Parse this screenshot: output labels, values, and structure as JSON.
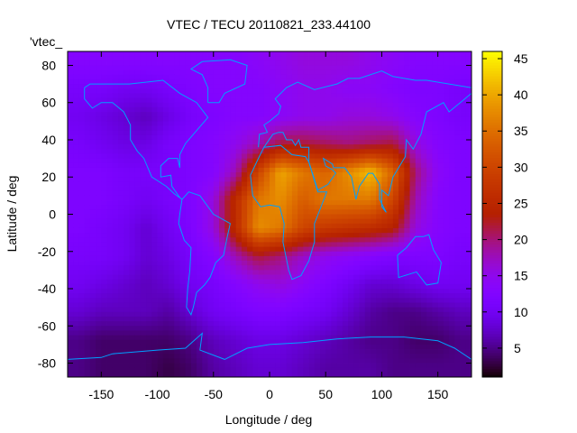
{
  "chart_data": {
    "type": "heatmap",
    "title": "VTEC / TECU 20110821_233.44100",
    "xlabel": "Longitude / deg",
    "ylabel": "Latitude / deg",
    "legend_entry": "'vtec_",
    "legend_placement": "top-left",
    "xlim": [
      -180,
      180
    ],
    "ylim": [
      -87.5,
      87.5
    ],
    "xticks": [
      -150,
      -100,
      -50,
      0,
      50,
      100,
      150
    ],
    "yticks": [
      -80,
      -60,
      -40,
      -20,
      0,
      20,
      40,
      60,
      80
    ],
    "colorbar": {
      "range": [
        1,
        46
      ],
      "ticks": [
        5,
        10,
        15,
        20,
        25,
        30,
        35,
        40,
        45
      ],
      "palette": "black-blue-red-yellow"
    },
    "coastline_color": "#00a0ff",
    "grid_lon_centers": [
      -170,
      -150,
      -130,
      -110,
      -90,
      -70,
      -50,
      -30,
      -10,
      10,
      30,
      50,
      70,
      90,
      110,
      130,
      150,
      170
    ],
    "grid_lat_centers": [
      82.5,
      67.5,
      52.5,
      37.5,
      22.5,
      7.5,
      -7.5,
      -22.5,
      -37.5,
      -52.5,
      -67.5,
      -82.5
    ],
    "values": [
      [
        13,
        13,
        13,
        13,
        13,
        13,
        13,
        13,
        14,
        15,
        16,
        16,
        16,
        15,
        14,
        13,
        13,
        13
      ],
      [
        11,
        11,
        10,
        10,
        11,
        12,
        13,
        13,
        13,
        14,
        15,
        15,
        14,
        14,
        13,
        12,
        12,
        11
      ],
      [
        10,
        9,
        8,
        7,
        9,
        11,
        12,
        13,
        13,
        14,
        15,
        15,
        16,
        16,
        15,
        13,
        12,
        11
      ],
      [
        11,
        10,
        9,
        9,
        11,
        12,
        13,
        15,
        18,
        22,
        22,
        21,
        20,
        21,
        22,
        16,
        13,
        12
      ],
      [
        12,
        12,
        11,
        11,
        11,
        12,
        13,
        18,
        30,
        40,
        36,
        34,
        38,
        42,
        34,
        20,
        14,
        12
      ],
      [
        12,
        12,
        11,
        10,
        11,
        12,
        16,
        26,
        36,
        38,
        33,
        36,
        36,
        36,
        30,
        18,
        13,
        12
      ],
      [
        12,
        11,
        10,
        8,
        10,
        12,
        16,
        26,
        38,
        36,
        30,
        28,
        27,
        26,
        24,
        16,
        13,
        12
      ],
      [
        11,
        11,
        10,
        8,
        9,
        11,
        13,
        18,
        22,
        20,
        17,
        15,
        14,
        13,
        12,
        12,
        12,
        11
      ],
      [
        10,
        9,
        8,
        7,
        8,
        10,
        11,
        13,
        15,
        16,
        14,
        12,
        10,
        8,
        8,
        9,
        10,
        10
      ],
      [
        8,
        7,
        7,
        7,
        6,
        8,
        10,
        11,
        12,
        12,
        11,
        10,
        8,
        6,
        5,
        5,
        6,
        7
      ],
      [
        5,
        4,
        4,
        4,
        4,
        5,
        7,
        8,
        9,
        9,
        8,
        7,
        6,
        5,
        5,
        4,
        4,
        5
      ],
      [
        5,
        4,
        4,
        4,
        3,
        4,
        6,
        7,
        8,
        8,
        7,
        6,
        6,
        6,
        5,
        5,
        5,
        5
      ]
    ]
  }
}
